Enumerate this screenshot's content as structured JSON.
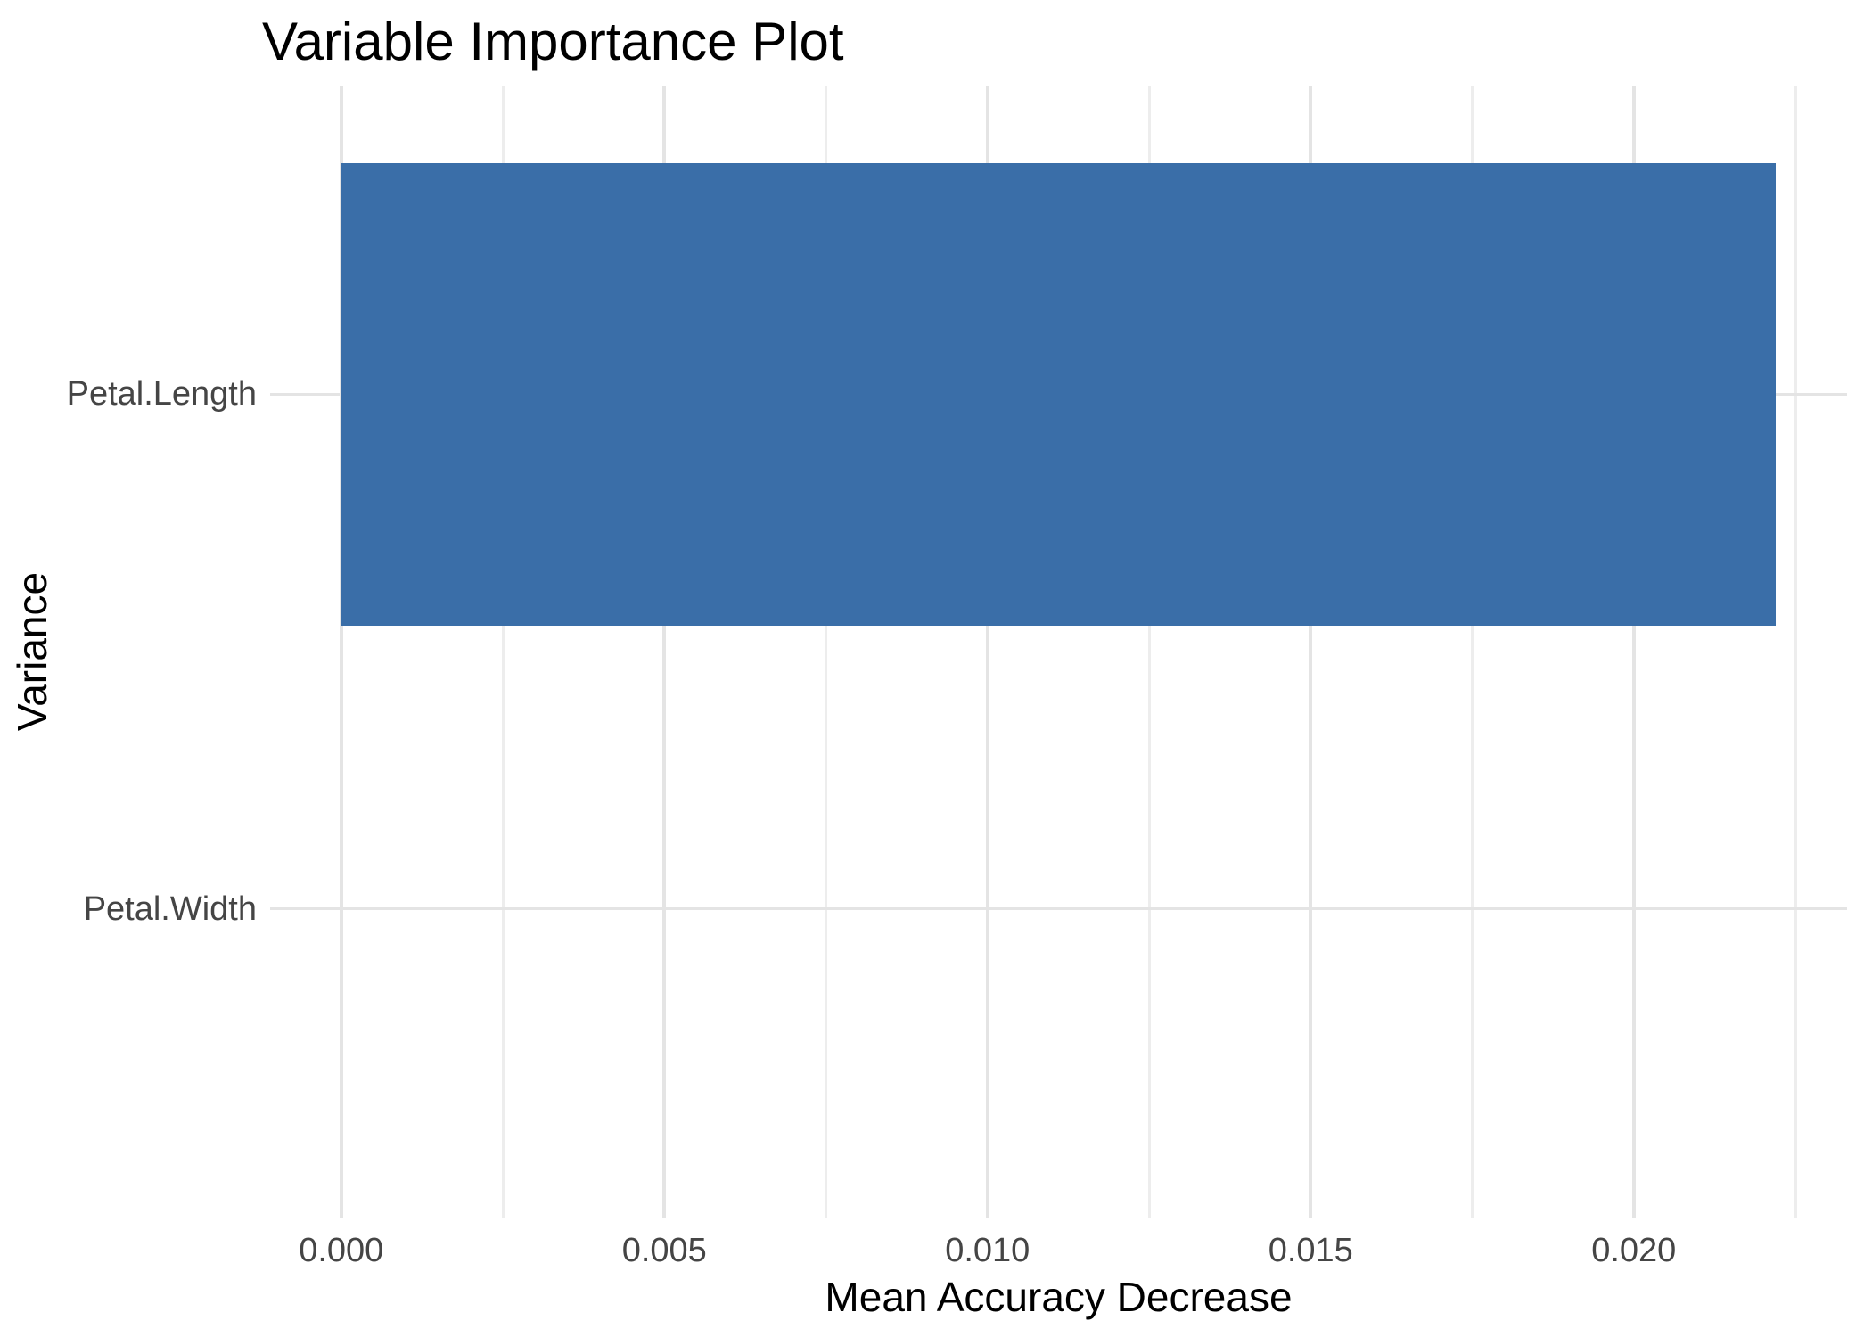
{
  "chart": {
    "title": "Variable Importance Plot",
    "xlabel": "Mean Accuracy Decrease",
    "ylabel": "Variance"
  },
  "chart_data": {
    "type": "bar",
    "orientation": "horizontal",
    "title": "Variable Importance Plot",
    "xlabel": "Mean Accuracy Decrease",
    "ylabel": "Variance",
    "categories": [
      "Petal.Length",
      "Petal.Width"
    ],
    "values": [
      0.0222,
      0.0
    ],
    "xlim": [
      -0.0011,
      0.0233
    ],
    "xticks": [
      0.0,
      0.005,
      0.01,
      0.015,
      0.02
    ],
    "xtick_labels": [
      "0.000",
      "0.005",
      "0.010",
      "0.015",
      "0.020"
    ],
    "xticks_minor": [
      0.0025,
      0.0075,
      0.0125,
      0.0175,
      0.0225
    ],
    "grid": true,
    "legend": "none",
    "colors": {
      "bar": "#3A6EA8",
      "background": "#FFFFFF",
      "grid_major": "#E4E4E4",
      "grid_minor": "#EDEDED",
      "tick_text": "#454545",
      "title_text": "#000000"
    }
  }
}
